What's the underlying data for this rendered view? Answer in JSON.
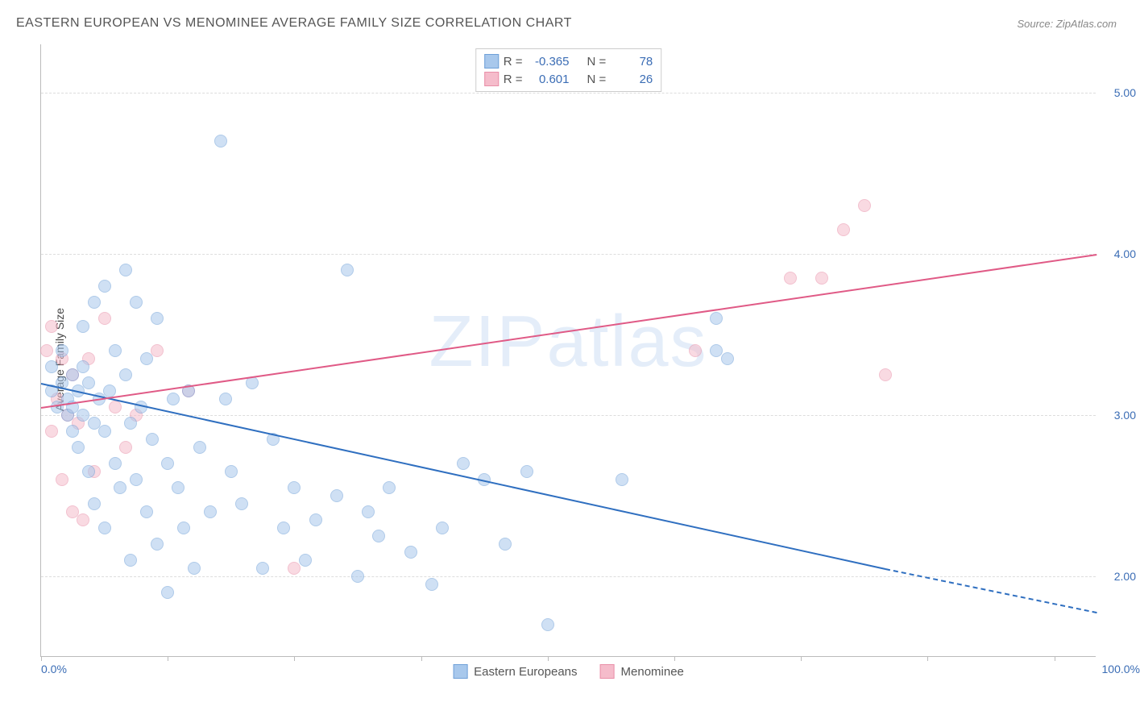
{
  "title": "EASTERN EUROPEAN VS MENOMINEE AVERAGE FAMILY SIZE CORRELATION CHART",
  "source": "Source: ZipAtlas.com",
  "y_axis_label": "Average Family Size",
  "watermark_bold": "ZIP",
  "watermark_light": "atlas",
  "chart": {
    "type": "scatter",
    "xlim": [
      0,
      100
    ],
    "ylim": [
      1.5,
      5.3
    ],
    "x_tick_labels": {
      "left": "0.0%",
      "right": "100.0%"
    },
    "y_ticks": [
      2.0,
      3.0,
      4.0,
      5.0
    ],
    "y_tick_labels": [
      "2.00",
      "3.00",
      "4.00",
      "5.00"
    ],
    "grid_color": "#dddddd",
    "axis_color": "#bbbbbb",
    "background_color": "#ffffff",
    "point_radius": 8,
    "point_opacity": 0.55,
    "title_fontsize": 16,
    "label_fontsize": 14,
    "tick_font_color": "#3b6db5",
    "vtick_positions": [
      0,
      12,
      24,
      36,
      48,
      60,
      72,
      84,
      96
    ]
  },
  "series": {
    "blue": {
      "label": "Eastern Europeans",
      "fill": "#a8c8ec",
      "stroke": "#6fa0d8",
      "line_color": "#2f6fc0",
      "R": "-0.365",
      "N": "78",
      "trend": {
        "x1": 0,
        "y1": 3.2,
        "x2": 80,
        "y2": 2.05,
        "dash_to_x": 100,
        "dash_to_y": 1.78
      },
      "points": [
        [
          1,
          3.15
        ],
        [
          1,
          3.3
        ],
        [
          1.5,
          3.05
        ],
        [
          2,
          3.2
        ],
        [
          2,
          3.4
        ],
        [
          2.5,
          3.1
        ],
        [
          2.5,
          3.0
        ],
        [
          3,
          3.25
        ],
        [
          3,
          3.05
        ],
        [
          3,
          2.9
        ],
        [
          3.5,
          3.15
        ],
        [
          3.5,
          2.8
        ],
        [
          4,
          3.3
        ],
        [
          4,
          3.0
        ],
        [
          4,
          3.55
        ],
        [
          4.5,
          2.65
        ],
        [
          4.5,
          3.2
        ],
        [
          5,
          2.95
        ],
        [
          5,
          3.7
        ],
        [
          5,
          2.45
        ],
        [
          5.5,
          3.1
        ],
        [
          6,
          3.8
        ],
        [
          6,
          2.3
        ],
        [
          6,
          2.9
        ],
        [
          6.5,
          3.15
        ],
        [
          7,
          2.7
        ],
        [
          7,
          3.4
        ],
        [
          7.5,
          2.55
        ],
        [
          8,
          3.9
        ],
        [
          8,
          3.25
        ],
        [
          8.5,
          2.1
        ],
        [
          8.5,
          2.95
        ],
        [
          9,
          3.7
        ],
        [
          9,
          2.6
        ],
        [
          9.5,
          3.05
        ],
        [
          10,
          2.4
        ],
        [
          10,
          3.35
        ],
        [
          10.5,
          2.85
        ],
        [
          11,
          2.2
        ],
        [
          11,
          3.6
        ],
        [
          12,
          1.9
        ],
        [
          12,
          2.7
        ],
        [
          12.5,
          3.1
        ],
        [
          13,
          2.55
        ],
        [
          13.5,
          2.3
        ],
        [
          14,
          3.15
        ],
        [
          14.5,
          2.05
        ],
        [
          15,
          2.8
        ],
        [
          16,
          2.4
        ],
        [
          17,
          4.7
        ],
        [
          17.5,
          3.1
        ],
        [
          18,
          2.65
        ],
        [
          19,
          2.45
        ],
        [
          20,
          3.2
        ],
        [
          21,
          2.05
        ],
        [
          22,
          2.85
        ],
        [
          23,
          2.3
        ],
        [
          24,
          2.55
        ],
        [
          25,
          2.1
        ],
        [
          26,
          2.35
        ],
        [
          28,
          2.5
        ],
        [
          29,
          3.9
        ],
        [
          30,
          2.0
        ],
        [
          31,
          2.4
        ],
        [
          32,
          2.25
        ],
        [
          33,
          2.55
        ],
        [
          35,
          2.15
        ],
        [
          37,
          1.95
        ],
        [
          38,
          2.3
        ],
        [
          40,
          2.7
        ],
        [
          42,
          2.6
        ],
        [
          44,
          2.2
        ],
        [
          46,
          2.65
        ],
        [
          48,
          1.7
        ],
        [
          55,
          2.6
        ],
        [
          64,
          3.6
        ],
        [
          64,
          3.4
        ],
        [
          65,
          3.35
        ]
      ]
    },
    "pink": {
      "label": "Menominee",
      "fill": "#f5bccb",
      "stroke": "#e98fa8",
      "line_color": "#e05a86",
      "R": "0.601",
      "N": "26",
      "trend": {
        "x1": 0,
        "y1": 3.05,
        "x2": 100,
        "y2": 4.0
      },
      "points": [
        [
          0.5,
          3.4
        ],
        [
          1,
          2.9
        ],
        [
          1,
          3.55
        ],
        [
          1.5,
          3.1
        ],
        [
          2,
          2.6
        ],
        [
          2,
          3.35
        ],
        [
          2.5,
          3.0
        ],
        [
          3,
          2.4
        ],
        [
          3,
          3.25
        ],
        [
          3.5,
          2.95
        ],
        [
          4,
          2.35
        ],
        [
          4.5,
          3.35
        ],
        [
          5,
          2.65
        ],
        [
          6,
          3.6
        ],
        [
          7,
          3.05
        ],
        [
          8,
          2.8
        ],
        [
          9,
          3.0
        ],
        [
          11,
          3.4
        ],
        [
          14,
          3.15
        ],
        [
          24,
          2.05
        ],
        [
          62,
          3.4
        ],
        [
          71,
          3.85
        ],
        [
          74,
          3.85
        ],
        [
          76,
          4.15
        ],
        [
          78,
          4.3
        ],
        [
          80,
          3.25
        ]
      ]
    }
  },
  "legend_top": {
    "R_label": "R =",
    "N_label": "N ="
  }
}
